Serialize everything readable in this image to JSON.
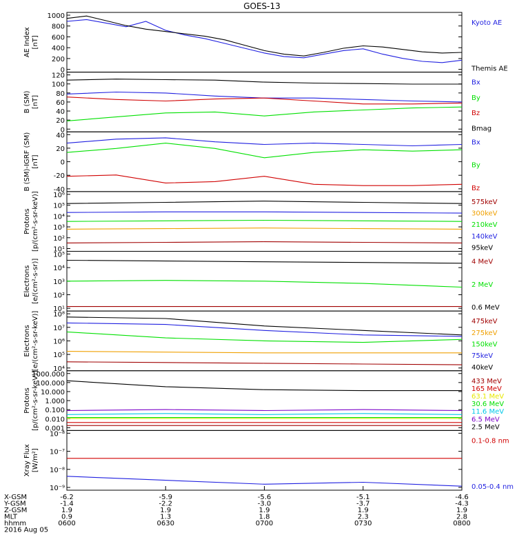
{
  "title": "GOES-13",
  "colors": {
    "black": "#000000",
    "blue": "#1f1fe0",
    "green": "#00e000",
    "red": "#d00000",
    "orange": "#f0a000",
    "darkred": "#a00000",
    "cyan": "#00c8e8",
    "yellow": "#e8e800",
    "purple": "#7a00c8",
    "magenta": "#c800a0"
  },
  "chart_data": [
    {
      "type": "line",
      "ylabel": "AE Index\n[nT]",
      "yticks": [
        "1000",
        "800",
        "600",
        "400",
        "200",
        "0"
      ],
      "ylim": [
        0,
        1000
      ],
      "legend": [
        {
          "label": "Kyoto AE",
          "color": "blue"
        },
        {
          "label": "Themis AE",
          "color": "black"
        }
      ],
      "series": [
        {
          "name": "Kyoto AE",
          "color": "blue",
          "x": [
            6.0,
            6.1,
            6.2,
            6.3,
            6.4,
            6.5,
            6.6,
            6.7,
            6.8,
            6.9,
            7.0,
            7.1,
            7.2,
            7.3,
            7.4,
            7.5,
            7.6,
            7.7,
            7.8,
            7.9,
            8.0
          ],
          "values": [
            850,
            880,
            820,
            760,
            850,
            700,
            620,
            560,
            480,
            400,
            320,
            260,
            240,
            300,
            360,
            390,
            300,
            230,
            180,
            160,
            200
          ]
        },
        {
          "name": "Themis AE",
          "color": "black",
          "x": [
            6.0,
            6.1,
            6.2,
            6.3,
            6.4,
            6.5,
            6.6,
            6.7,
            6.8,
            6.9,
            7.0,
            7.1,
            7.2,
            7.3,
            7.4,
            7.5,
            7.6,
            7.7,
            7.8,
            7.9,
            8.0
          ],
          "values": [
            900,
            940,
            860,
            780,
            720,
            680,
            640,
            600,
            540,
            450,
            360,
            300,
            270,
            330,
            400,
            440,
            420,
            380,
            340,
            320,
            330
          ]
        }
      ]
    },
    {
      "type": "line",
      "ylabel": "B (SM)\n[nT]",
      "yticks": [
        "120",
        "100",
        "80",
        "60",
        "40",
        "20",
        "0"
      ],
      "ylim": [
        0,
        120
      ],
      "legend": [
        {
          "label": "Bx",
          "color": "blue"
        },
        {
          "label": "By",
          "color": "green"
        },
        {
          "label": "Bz",
          "color": "red"
        },
        {
          "label": "Bmag",
          "color": "black"
        }
      ],
      "series": [
        {
          "name": "Bmag",
          "color": "black",
          "x": [
            6.0,
            6.25,
            6.5,
            6.75,
            7.0,
            7.25,
            7.5,
            7.75,
            8.0
          ],
          "values": [
            104,
            106,
            105,
            104,
            100,
            98,
            97,
            96,
            96
          ]
        },
        {
          "name": "Bx",
          "color": "blue",
          "x": [
            6.0,
            6.25,
            6.5,
            6.75,
            7.0,
            7.25,
            7.5,
            7.75,
            8.0
          ],
          "values": [
            76,
            80,
            78,
            72,
            68,
            68,
            65,
            62,
            60
          ]
        },
        {
          "name": "By",
          "color": "green",
          "x": [
            6.0,
            6.25,
            6.5,
            6.75,
            7.0,
            7.25,
            7.5,
            7.75,
            8.0
          ],
          "values": [
            22,
            30,
            38,
            40,
            32,
            40,
            44,
            48,
            50
          ]
        },
        {
          "name": "Bz",
          "color": "red",
          "x": [
            6.0,
            6.25,
            6.5,
            6.75,
            7.0,
            7.25,
            7.5,
            7.75,
            8.0
          ],
          "values": [
            70,
            65,
            62,
            66,
            68,
            62,
            56,
            56,
            58
          ]
        }
      ]
    },
    {
      "type": "line",
      "ylabel": "B (SM)-IGRF (SM)\n[nT]",
      "yticks": [
        "40",
        "20",
        "0",
        "-20",
        "-40"
      ],
      "ylim": [
        -45,
        45
      ],
      "legend": [
        {
          "label": "Bx",
          "color": "blue"
        },
        {
          "label": "By",
          "color": "green"
        },
        {
          "label": "Bz",
          "color": "red"
        }
      ],
      "series": [
        {
          "name": "Bx",
          "color": "blue",
          "x": [
            6.0,
            6.25,
            6.5,
            6.75,
            7.0,
            7.25,
            7.5,
            7.75,
            8.0
          ],
          "values": [
            28,
            34,
            36,
            30,
            26,
            28,
            26,
            24,
            26
          ]
        },
        {
          "name": "By",
          "color": "green",
          "x": [
            6.0,
            6.25,
            6.5,
            6.75,
            7.0,
            7.25,
            7.5,
            7.75,
            8.0
          ],
          "values": [
            14,
            20,
            28,
            20,
            6,
            14,
            18,
            16,
            18
          ]
        },
        {
          "name": "Bz",
          "color": "red",
          "x": [
            6.0,
            6.25,
            6.5,
            6.75,
            7.0,
            7.25,
            7.5,
            7.75,
            8.0
          ],
          "values": [
            -22,
            -20,
            -32,
            -30,
            -22,
            -34,
            -36,
            -36,
            -34
          ]
        }
      ]
    },
    {
      "type": "line",
      "scale": "log",
      "ylabel": "Protons\n[p/(cm²-s-sr-keV)]",
      "yticks": [
        "10⁶",
        "10⁵",
        "10⁴",
        "10³",
        "10²",
        "10¹"
      ],
      "ylim": [
        1,
        6
      ],
      "legend": [
        {
          "label": "575keV",
          "color": "darkred"
        },
        {
          "label": "300keV",
          "color": "orange"
        },
        {
          "label": "210keV",
          "color": "green"
        },
        {
          "label": "140keV",
          "color": "blue"
        },
        {
          "label": "95keV",
          "color": "black"
        }
      ],
      "series": [
        {
          "name": "95keV",
          "color": "black",
          "x": [
            6.0,
            6.5,
            7.0,
            7.5,
            8.0
          ],
          "values": [
            5.0,
            5.1,
            5.2,
            5.1,
            5.0
          ]
        },
        {
          "name": "140keV",
          "color": "blue",
          "x": [
            6.0,
            6.5,
            7.0,
            7.5,
            8.0
          ],
          "values": [
            4.25,
            4.3,
            4.3,
            4.25,
            4.2
          ]
        },
        {
          "name": "210keV",
          "color": "green",
          "x": [
            6.0,
            6.5,
            7.0,
            7.5,
            8.0
          ],
          "values": [
            3.5,
            3.55,
            3.6,
            3.55,
            3.5
          ]
        },
        {
          "name": "300keV",
          "color": "orange",
          "x": [
            6.0,
            6.5,
            7.0,
            7.5,
            8.0
          ],
          "values": [
            2.85,
            2.9,
            2.95,
            2.9,
            2.85
          ]
        },
        {
          "name": "575keV",
          "color": "darkred",
          "x": [
            6.0,
            6.5,
            7.0,
            7.5,
            8.0
          ],
          "values": [
            1.7,
            1.75,
            1.8,
            1.75,
            1.7
          ]
        }
      ]
    },
    {
      "type": "line",
      "scale": "log",
      "ylabel": "Electrons\n[e/(cm²-s-sr)]",
      "yticks": [
        "10⁵",
        "10⁴",
        "10³",
        "10²",
        "10¹"
      ],
      "ylim": [
        1,
        5
      ],
      "legend": [
        {
          "label": "4 MeV",
          "color": "darkred"
        },
        {
          "label": "2 MeV",
          "color": "green"
        },
        {
          "label": "0.6 MeV",
          "color": "black"
        }
      ],
      "series": [
        {
          "name": "0.6 MeV",
          "color": "black",
          "x": [
            6.0,
            6.5,
            7.0,
            7.5,
            8.0
          ],
          "values": [
            4.4,
            4.35,
            4.3,
            4.25,
            4.2
          ]
        },
        {
          "name": "2 MeV",
          "color": "green",
          "x": [
            6.0,
            6.5,
            7.0,
            7.5,
            8.0
          ],
          "values": [
            3.0,
            3.05,
            3.0,
            2.85,
            2.6
          ]
        },
        {
          "name": "4 MeV",
          "color": "darkred",
          "x": [
            6.0,
            6.5,
            7.0,
            7.5,
            8.0
          ],
          "values": [
            1.3,
            1.3,
            1.3,
            1.3,
            1.3
          ]
        }
      ]
    },
    {
      "type": "line",
      "scale": "log",
      "ylabel": "Electrons\n[e/(cm²-s-sr-keV)]",
      "yticks": [
        "10⁸",
        "10⁷",
        "10⁶",
        "10⁵",
        "10⁴"
      ],
      "ylim": [
        4,
        8
      ],
      "legend": [
        {
          "label": "475keV",
          "color": "darkred"
        },
        {
          "label": "275keV",
          "color": "orange"
        },
        {
          "label": "150keV",
          "color": "green"
        },
        {
          "label": "75keV",
          "color": "blue"
        },
        {
          "label": "40keV",
          "color": "black"
        }
      ],
      "series": [
        {
          "name": "40keV",
          "color": "black",
          "x": [
            6.0,
            6.5,
            7.0,
            7.5,
            8.0
          ],
          "values": [
            7.6,
            7.5,
            7.0,
            6.7,
            6.4
          ]
        },
        {
          "name": "75keV",
          "color": "blue",
          "x": [
            6.0,
            6.5,
            7.0,
            7.5,
            8.0
          ],
          "values": [
            7.2,
            7.1,
            6.7,
            6.4,
            6.3
          ]
        },
        {
          "name": "150keV",
          "color": "green",
          "x": [
            6.0,
            6.5,
            7.0,
            7.5,
            8.0
          ],
          "values": [
            6.6,
            6.2,
            6.0,
            5.9,
            6.1
          ]
        },
        {
          "name": "275keV",
          "color": "orange",
          "x": [
            6.0,
            6.5,
            7.0,
            7.5,
            8.0
          ],
          "values": [
            5.3,
            5.25,
            5.2,
            5.2,
            5.2
          ]
        },
        {
          "name": "475keV",
          "color": "darkred",
          "x": [
            6.0,
            6.5,
            7.0,
            7.5,
            8.0
          ],
          "values": [
            4.6,
            4.55,
            4.5,
            4.45,
            4.4
          ]
        }
      ]
    },
    {
      "type": "line",
      "scale": "log",
      "ylabel": "Protons\n[p/(cm²-s-sr-keV)]",
      "yticks": [
        "1000.000",
        "100.000",
        "10.000",
        "1.000",
        "0.100",
        "0.010",
        "0.001"
      ],
      "ylim": [
        -3,
        3
      ],
      "legend": [
        {
          "label": "433 MeV",
          "color": "darkred"
        },
        {
          "label": "165 MeV",
          "color": "red"
        },
        {
          "label": "63.1 MeV",
          "color": "yellow"
        },
        {
          "label": "30.6 MeV",
          "color": "green"
        },
        {
          "label": "11.6 MeV",
          "color": "cyan"
        },
        {
          "label": "6.5 MeV",
          "color": "purple"
        },
        {
          "label": "2.5 MeV",
          "color": "black"
        }
      ],
      "series": [
        {
          "name": "2.5 MeV",
          "color": "black",
          "x": [
            6.0,
            6.5,
            7.0,
            7.5,
            8.0
          ],
          "values": [
            2.0,
            1.4,
            1.1,
            1.0,
            1.0
          ]
        },
        {
          "name": "6.5 MeV",
          "color": "purple",
          "x": [
            6.0,
            6.5,
            7.0,
            7.5,
            8.0
          ],
          "values": [
            -1.0,
            -0.9,
            -1.0,
            -0.9,
            -1.0
          ]
        },
        {
          "name": "11.6 MeV",
          "color": "cyan",
          "x": [
            6.0,
            6.5,
            7.0,
            7.5,
            8.0
          ],
          "values": [
            -1.4,
            -1.3,
            -1.4,
            -1.3,
            -1.4
          ]
        },
        {
          "name": "30.6 MeV",
          "color": "green",
          "x": [
            6.0,
            6.5,
            7.0,
            7.5,
            8.0
          ],
          "values": [
            -1.7,
            -1.7,
            -1.7,
            -1.7,
            -1.7
          ]
        },
        {
          "name": "63.1 MeV",
          "color": "yellow",
          "x": [
            6.0,
            6.5,
            7.0,
            7.5,
            8.0
          ],
          "values": [
            -1.8,
            -1.8,
            -1.8,
            -1.8,
            -1.8
          ]
        },
        {
          "name": "165 MeV",
          "color": "red",
          "x": [
            6.0,
            6.5,
            7.0,
            7.5,
            8.0
          ],
          "values": [
            -2.2,
            -2.2,
            -2.2,
            -2.2,
            -2.2
          ]
        },
        {
          "name": "433 MeV",
          "color": "darkred",
          "x": [
            6.0,
            6.5,
            7.0,
            7.5,
            8.0
          ],
          "values": [
            -2.5,
            -2.5,
            -2.5,
            -2.5,
            -2.5
          ]
        }
      ]
    },
    {
      "type": "line",
      "scale": "log",
      "ylabel": "Xray Flux\n[W/m²]",
      "yticks": [
        "10⁻⁸",
        "10⁻⁷",
        "10⁻⁸",
        "10⁻⁹"
      ],
      "ylim": [
        -9,
        -6
      ],
      "legend": [
        {
          "label": "0.1-0.8 nm",
          "color": "red"
        },
        {
          "label": "0.05-0.4 nm",
          "color": "blue"
        }
      ],
      "series": [
        {
          "name": "0.1-0.8 nm",
          "color": "red",
          "x": [
            6.0,
            6.5,
            7.0,
            7.5,
            8.0
          ],
          "values": [
            -7.4,
            -7.4,
            -7.4,
            -7.4,
            -7.4
          ]
        },
        {
          "name": "0.05-0.4 nm",
          "color": "blue",
          "x": [
            6.0,
            6.5,
            7.0,
            7.5,
            8.0
          ],
          "values": [
            -8.3,
            -8.5,
            -8.7,
            -8.6,
            -8.8
          ]
        }
      ]
    }
  ],
  "xaxis": {
    "rows": [
      {
        "label": "X-GSM",
        "values": [
          "-6.2",
          "-5.9",
          "-5.6",
          "-5.1",
          "-4.6"
        ]
      },
      {
        "label": "Y-GSM",
        "values": [
          "-1.4",
          "-2.2",
          "-3.0",
          "-3.7",
          "-4.3"
        ]
      },
      {
        "label": "Z-GSM",
        "values": [
          "1.9",
          "1.9",
          "1.9",
          "1.9",
          "1.9"
        ]
      },
      {
        "label": "MLT",
        "values": [
          "0.9",
          "1.3",
          "1.8",
          "2.3",
          "2.8"
        ]
      },
      {
        "label": "hhmm",
        "values": [
          "0600",
          "0630",
          "0700",
          "0730",
          "0800"
        ]
      }
    ],
    "date": "2016 Aug 05"
  }
}
